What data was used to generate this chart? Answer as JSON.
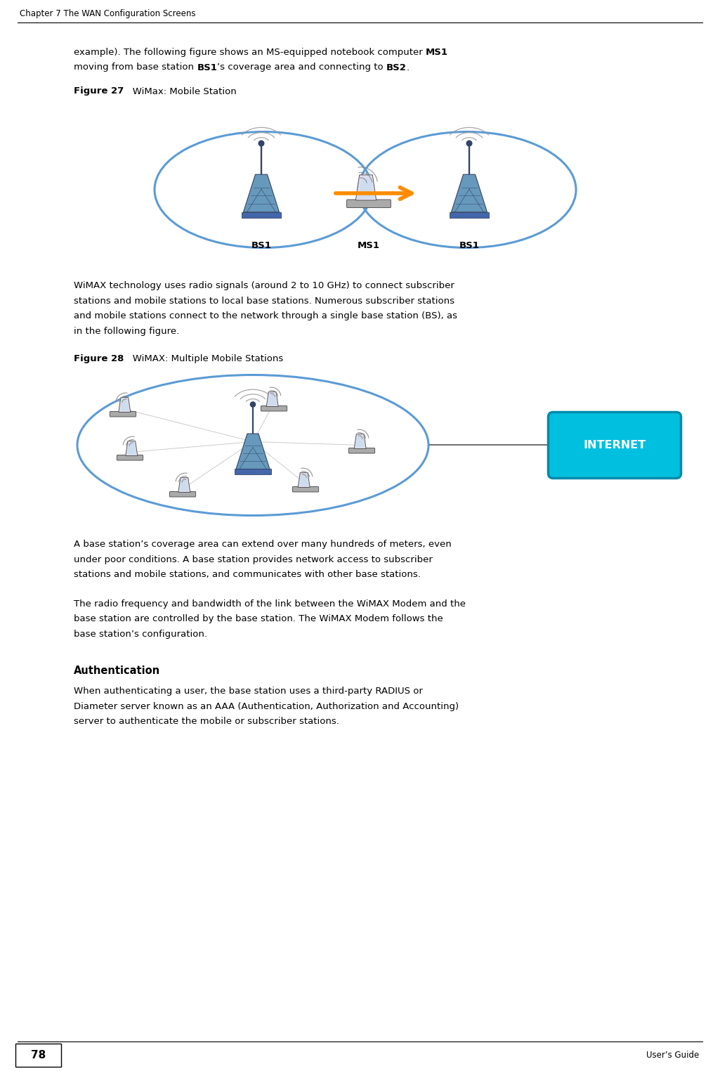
{
  "page_width": 10.25,
  "page_height": 15.24,
  "dpi": 100,
  "bg_color": "#ffffff",
  "header_text": "Chapter 7 The WAN Configuration Screens",
  "footer_page": "78",
  "footer_right": "User’s Guide",
  "font_family": "DejaVu Sans",
  "body_fontsize": 9.5,
  "header_fontsize": 8.5,
  "footer_fontsize": 8.5,
  "label_bold": "Figure 27",
  "label_normal": "   WiMax: Mobile Station",
  "label28_bold": "Figure 28",
  "label28_normal": "   WiMAX: Multiple Mobile Stations",
  "auth_header": "Authentication",
  "para1a": "example). The following figure shows an MS-equipped notebook computer ",
  "para1a_bold": "MS1",
  "para1b": "moving from base station ",
  "para1b_bold1": "BS1",
  "para1b_mid": "’s coverage area and connecting to ",
  "para1b_bold2": "BS2",
  "para1b_end": ".",
  "para2": "WiMAX technology uses radio signals (around 2 to 10 GHz) to connect subscriber\nstations and mobile stations to local base stations. Numerous subscriber stations\nand mobile stations connect to the network through a single base station (BS), as\nin the following figure.",
  "para3": "A base station’s coverage area can extend over many hundreds of meters, even\nunder poor conditions. A base station provides network access to subscriber\nstations and mobile stations, and communicates with other base stations.",
  "para4": "The radio frequency and bandwidth of the link between the WiMAX Modem and the\nbase station are controlled by the base station. The WiMAX Modem follows the\nbase station’s configuration.",
  "para5": "When authenticating a user, the base station uses a third-party RADIUS or\nDiameter server known as an AAA (Authentication, Authorization and Accounting)\nserver to authenticate the mobile or subscriber stations.",
  "ellipse_color": "#5B9BD5",
  "arrow_color": "#FF8C00",
  "tower_color": "#6699BB",
  "tower_dark": "#334466",
  "inet_color": "#00BFDF",
  "inet_border": "#008BAA"
}
